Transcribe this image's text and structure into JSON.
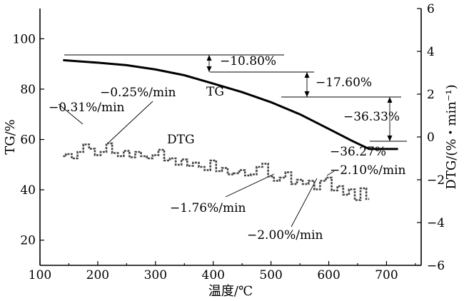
{
  "chart_data": {
    "type": "line",
    "xlabel": "温度/℃",
    "ylabel_left": "TG/%",
    "ylabel_right": "DTG/(%・min⁻¹)",
    "xlim": [
      100,
      760
    ],
    "ylim_left": [
      10,
      112
    ],
    "ylim_right": [
      -6,
      6
    ],
    "x_ticks": [
      "100",
      "200",
      "300",
      "400",
      "500",
      "600",
      "700"
    ],
    "y_left_ticks": [
      "20",
      "40",
      "60",
      "80",
      "100"
    ],
    "y_right_ticks": [
      "−6",
      "−4",
      "−2",
      "0",
      "2",
      "4",
      "6"
    ],
    "grid": false,
    "series": [
      {
        "name": "TG",
        "axis": "left",
        "x": [
          140,
          200,
          250,
          300,
          350,
          400,
          450,
          500,
          550,
          600,
          640,
          670,
          720
        ],
        "y": [
          91.5,
          90.5,
          89.5,
          87.8,
          85.5,
          82.2,
          78.8,
          74.8,
          70.0,
          64.2,
          59.5,
          56.2,
          56.2
        ]
      },
      {
        "name": "DTG",
        "axis": "right",
        "x": [
          140,
          150,
          160,
          170,
          180,
          190,
          200,
          210,
          220,
          230,
          240,
          250,
          260,
          270,
          280,
          290,
          300,
          310,
          320,
          330,
          340,
          350,
          360,
          370,
          380,
          390,
          400,
          410,
          420,
          430,
          440,
          450,
          460,
          470,
          480,
          490,
          500,
          510,
          520,
          530,
          540,
          550,
          560,
          570,
          580,
          590,
          600,
          610,
          620,
          630,
          640,
          650,
          660,
          670
        ],
        "y": [
          -0.9,
          -0.8,
          -1.0,
          -0.7,
          -0.35,
          -0.55,
          -0.85,
          -0.7,
          -0.3,
          -0.75,
          -0.9,
          -0.65,
          -0.95,
          -0.7,
          -0.9,
          -1.0,
          -0.85,
          -0.6,
          -1.1,
          -1.0,
          -1.3,
          -1.05,
          -1.35,
          -1.2,
          -1.4,
          -1.55,
          -1.1,
          -1.6,
          -1.45,
          -1.75,
          -1.7,
          -1.55,
          -1.8,
          -1.75,
          -1.4,
          -1.25,
          -1.85,
          -2.05,
          -1.9,
          -1.65,
          -2.2,
          -2.0,
          -2.2,
          -2.05,
          -2.45,
          -2.05,
          -1.9,
          -2.5,
          -2.3,
          -2.7,
          -2.45,
          -2.95,
          -2.4,
          -2.9
        ]
      }
    ],
    "annotations": [
      {
        "text": "−10.80%"
      },
      {
        "text": "−17.60%"
      },
      {
        "text": "−36.33%"
      },
      {
        "text": "−36.27%"
      },
      {
        "text": "TG"
      },
      {
        "text": "DTG"
      },
      {
        "text": "−0.25%/min"
      },
      {
        "text": "−0.31%/min"
      },
      {
        "text": "−1.76%/min"
      },
      {
        "text": "−2.10%/min"
      },
      {
        "text": "−2.00%/min"
      }
    ]
  }
}
